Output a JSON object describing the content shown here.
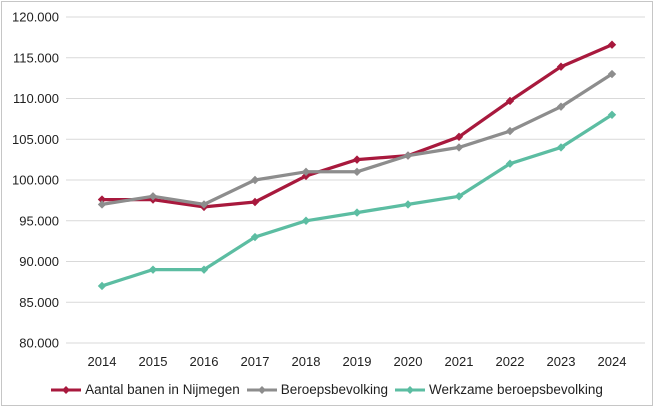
{
  "chart_data": {
    "type": "line",
    "title": "",
    "xlabel": "",
    "ylabel": "",
    "categories": [
      "2014",
      "2015",
      "2016",
      "2017",
      "2018",
      "2019",
      "2020",
      "2021",
      "2022",
      "2023",
      "2024"
    ],
    "series": [
      {
        "name": "Aantal banen in Nijmegen",
        "color": "#A8193D",
        "values": [
          97600,
          97600,
          96700,
          97300,
          100500,
          102500,
          103000,
          105300,
          109700,
          113900,
          116600
        ]
      },
      {
        "name": "Beroepsbevolking",
        "color": "#8D8D8D",
        "values": [
          97000,
          98000,
          97000,
          100000,
          101000,
          101000,
          103000,
          104000,
          106000,
          109000,
          113000
        ]
      },
      {
        "name": "Werkzame beroepsbevolking",
        "color": "#5CBDA2",
        "values": [
          87000,
          89000,
          89000,
          93000,
          95000,
          96000,
          97000,
          98000,
          102000,
          104000,
          108000
        ]
      }
    ],
    "ylim": [
      80000,
      120000
    ],
    "ytick_step": 5000,
    "ytick_labels": [
      "120.000",
      "115.000",
      "110.000",
      "105.000",
      "100.000",
      "95.000",
      "90.000",
      "85.000",
      "80.000"
    ],
    "grid": true,
    "legend_position": "bottom",
    "marker": "diamond"
  },
  "colors": {
    "grid": "#D9D9D9",
    "axis_text": "#1F1F1F",
    "legend_text": "#1F1F1F",
    "border": "#C6C6C6",
    "background": "#FFFFFF"
  }
}
